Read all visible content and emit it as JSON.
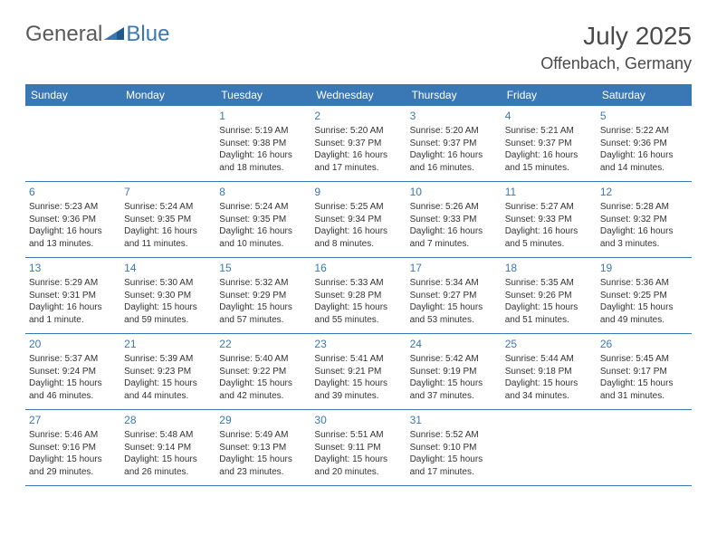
{
  "logo": {
    "text_general": "General",
    "text_blue": "Blue"
  },
  "colors": {
    "header_bg": "#3a78b5",
    "header_text": "#ffffff",
    "daynum": "#3a78b5",
    "body_text": "#333333",
    "row_border": "#3a78b5",
    "logo_gray": "#5a5a5a",
    "logo_blue": "#3a78b5",
    "title": "#4a4a4a"
  },
  "fonts": {
    "family": "Arial, Helvetica, sans-serif",
    "title_size": 28,
    "location_size": 18,
    "dayheader_size": 12,
    "daynum_size": 12,
    "info_size": 10
  },
  "title": "July 2025",
  "location": "Offenbach, Germany",
  "day_headers": [
    "Sunday",
    "Monday",
    "Tuesday",
    "Wednesday",
    "Thursday",
    "Friday",
    "Saturday"
  ],
  "weeks": [
    [
      null,
      null,
      {
        "n": "1",
        "sunrise": "Sunrise: 5:19 AM",
        "sunset": "Sunset: 9:38 PM",
        "daylight": "Daylight: 16 hours and 18 minutes."
      },
      {
        "n": "2",
        "sunrise": "Sunrise: 5:20 AM",
        "sunset": "Sunset: 9:37 PM",
        "daylight": "Daylight: 16 hours and 17 minutes."
      },
      {
        "n": "3",
        "sunrise": "Sunrise: 5:20 AM",
        "sunset": "Sunset: 9:37 PM",
        "daylight": "Daylight: 16 hours and 16 minutes."
      },
      {
        "n": "4",
        "sunrise": "Sunrise: 5:21 AM",
        "sunset": "Sunset: 9:37 PM",
        "daylight": "Daylight: 16 hours and 15 minutes."
      },
      {
        "n": "5",
        "sunrise": "Sunrise: 5:22 AM",
        "sunset": "Sunset: 9:36 PM",
        "daylight": "Daylight: 16 hours and 14 minutes."
      }
    ],
    [
      {
        "n": "6",
        "sunrise": "Sunrise: 5:23 AM",
        "sunset": "Sunset: 9:36 PM",
        "daylight": "Daylight: 16 hours and 13 minutes."
      },
      {
        "n": "7",
        "sunrise": "Sunrise: 5:24 AM",
        "sunset": "Sunset: 9:35 PM",
        "daylight": "Daylight: 16 hours and 11 minutes."
      },
      {
        "n": "8",
        "sunrise": "Sunrise: 5:24 AM",
        "sunset": "Sunset: 9:35 PM",
        "daylight": "Daylight: 16 hours and 10 minutes."
      },
      {
        "n": "9",
        "sunrise": "Sunrise: 5:25 AM",
        "sunset": "Sunset: 9:34 PM",
        "daylight": "Daylight: 16 hours and 8 minutes."
      },
      {
        "n": "10",
        "sunrise": "Sunrise: 5:26 AM",
        "sunset": "Sunset: 9:33 PM",
        "daylight": "Daylight: 16 hours and 7 minutes."
      },
      {
        "n": "11",
        "sunrise": "Sunrise: 5:27 AM",
        "sunset": "Sunset: 9:33 PM",
        "daylight": "Daylight: 16 hours and 5 minutes."
      },
      {
        "n": "12",
        "sunrise": "Sunrise: 5:28 AM",
        "sunset": "Sunset: 9:32 PM",
        "daylight": "Daylight: 16 hours and 3 minutes."
      }
    ],
    [
      {
        "n": "13",
        "sunrise": "Sunrise: 5:29 AM",
        "sunset": "Sunset: 9:31 PM",
        "daylight": "Daylight: 16 hours and 1 minute."
      },
      {
        "n": "14",
        "sunrise": "Sunrise: 5:30 AM",
        "sunset": "Sunset: 9:30 PM",
        "daylight": "Daylight: 15 hours and 59 minutes."
      },
      {
        "n": "15",
        "sunrise": "Sunrise: 5:32 AM",
        "sunset": "Sunset: 9:29 PM",
        "daylight": "Daylight: 15 hours and 57 minutes."
      },
      {
        "n": "16",
        "sunrise": "Sunrise: 5:33 AM",
        "sunset": "Sunset: 9:28 PM",
        "daylight": "Daylight: 15 hours and 55 minutes."
      },
      {
        "n": "17",
        "sunrise": "Sunrise: 5:34 AM",
        "sunset": "Sunset: 9:27 PM",
        "daylight": "Daylight: 15 hours and 53 minutes."
      },
      {
        "n": "18",
        "sunrise": "Sunrise: 5:35 AM",
        "sunset": "Sunset: 9:26 PM",
        "daylight": "Daylight: 15 hours and 51 minutes."
      },
      {
        "n": "19",
        "sunrise": "Sunrise: 5:36 AM",
        "sunset": "Sunset: 9:25 PM",
        "daylight": "Daylight: 15 hours and 49 minutes."
      }
    ],
    [
      {
        "n": "20",
        "sunrise": "Sunrise: 5:37 AM",
        "sunset": "Sunset: 9:24 PM",
        "daylight": "Daylight: 15 hours and 46 minutes."
      },
      {
        "n": "21",
        "sunrise": "Sunrise: 5:39 AM",
        "sunset": "Sunset: 9:23 PM",
        "daylight": "Daylight: 15 hours and 44 minutes."
      },
      {
        "n": "22",
        "sunrise": "Sunrise: 5:40 AM",
        "sunset": "Sunset: 9:22 PM",
        "daylight": "Daylight: 15 hours and 42 minutes."
      },
      {
        "n": "23",
        "sunrise": "Sunrise: 5:41 AM",
        "sunset": "Sunset: 9:21 PM",
        "daylight": "Daylight: 15 hours and 39 minutes."
      },
      {
        "n": "24",
        "sunrise": "Sunrise: 5:42 AM",
        "sunset": "Sunset: 9:19 PM",
        "daylight": "Daylight: 15 hours and 37 minutes."
      },
      {
        "n": "25",
        "sunrise": "Sunrise: 5:44 AM",
        "sunset": "Sunset: 9:18 PM",
        "daylight": "Daylight: 15 hours and 34 minutes."
      },
      {
        "n": "26",
        "sunrise": "Sunrise: 5:45 AM",
        "sunset": "Sunset: 9:17 PM",
        "daylight": "Daylight: 15 hours and 31 minutes."
      }
    ],
    [
      {
        "n": "27",
        "sunrise": "Sunrise: 5:46 AM",
        "sunset": "Sunset: 9:16 PM",
        "daylight": "Daylight: 15 hours and 29 minutes."
      },
      {
        "n": "28",
        "sunrise": "Sunrise: 5:48 AM",
        "sunset": "Sunset: 9:14 PM",
        "daylight": "Daylight: 15 hours and 26 minutes."
      },
      {
        "n": "29",
        "sunrise": "Sunrise: 5:49 AM",
        "sunset": "Sunset: 9:13 PM",
        "daylight": "Daylight: 15 hours and 23 minutes."
      },
      {
        "n": "30",
        "sunrise": "Sunrise: 5:51 AM",
        "sunset": "Sunset: 9:11 PM",
        "daylight": "Daylight: 15 hours and 20 minutes."
      },
      {
        "n": "31",
        "sunrise": "Sunrise: 5:52 AM",
        "sunset": "Sunset: 9:10 PM",
        "daylight": "Daylight: 15 hours and 17 minutes."
      },
      null,
      null
    ]
  ]
}
